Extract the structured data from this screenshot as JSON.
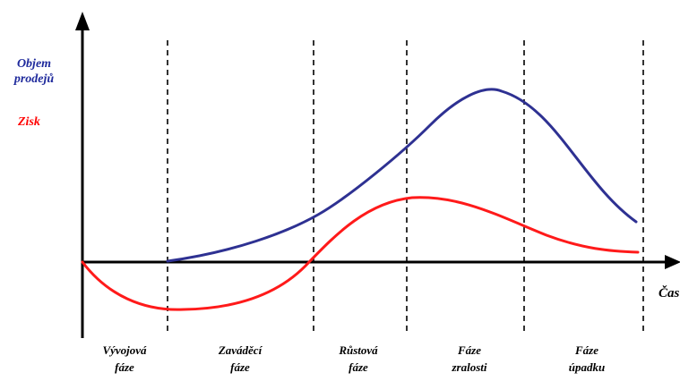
{
  "legend": {
    "sales_label_line1": "Objem",
    "sales_label_line2": "prodejů",
    "profit_label": "Zisk"
  },
  "axis": {
    "x_label": "Čas"
  },
  "phases": [
    {
      "line1": "Vývojová",
      "line2": "fáze"
    },
    {
      "line1": "Zaváděcí",
      "line2": "fáze"
    },
    {
      "line1": "Růstová",
      "line2": "fáze"
    },
    {
      "line1": "Fáze",
      "line2": "zralosti"
    },
    {
      "line1": "Fáze",
      "line2": "úpadku"
    }
  ],
  "colors": {
    "sales_curve": "#2e3192",
    "profit_curve": "#ff1a1a",
    "sales_text": "#1f2a9c",
    "profit_text": "#ff0000",
    "axis": "#000000"
  }
}
